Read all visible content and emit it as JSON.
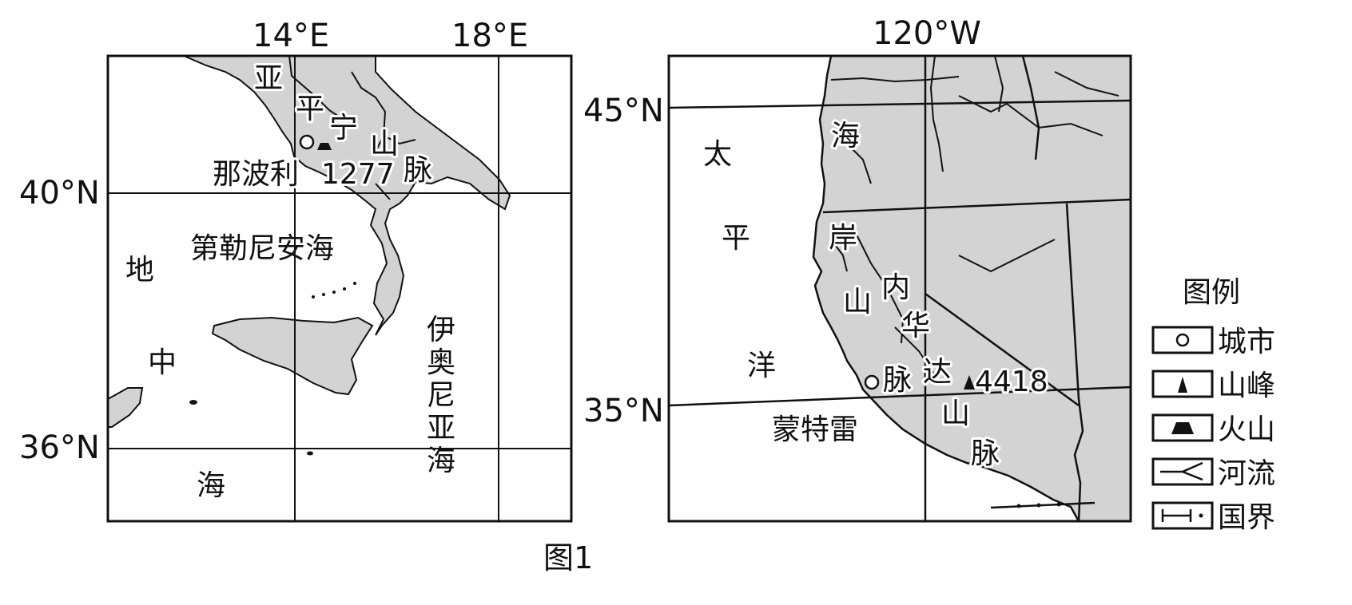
{
  "figure_caption": "图1",
  "map_left": {
    "lon_labels": [
      "14°E",
      "18°E"
    ],
    "lat_labels": [
      "40°N",
      "36°N"
    ],
    "places": {
      "sea_di": "地",
      "sea_zhong": "中",
      "sea_hai": "海",
      "tyrrhenian": "第勒尼安海",
      "ionian": [
        "伊",
        "奥",
        "尼",
        "亚",
        "海"
      ],
      "apennine": [
        "亚",
        "平",
        "宁",
        "山",
        "脉"
      ],
      "naples": "那波利",
      "volcano_height": "1277"
    }
  },
  "map_right": {
    "lon_labels": [
      "120°W"
    ],
    "lat_labels": [
      "45°N",
      "35°N"
    ],
    "places": {
      "pacific": [
        "太",
        "平",
        "洋"
      ],
      "coast_range": [
        "海",
        "岸",
        "山",
        "脉"
      ],
      "sierra_nevada": [
        "内",
        "华",
        "达",
        "山",
        "脉"
      ],
      "monterey": "蒙特雷",
      "peak_height": "4418"
    }
  },
  "legend": {
    "title": "图例",
    "items": [
      {
        "icon": "city-icon",
        "label": "城市"
      },
      {
        "icon": "peak-icon",
        "label": "山峰"
      },
      {
        "icon": "volcano-icon",
        "label": "火山"
      },
      {
        "icon": "river-icon",
        "label": "河流"
      },
      {
        "icon": "border-icon",
        "label": "国界"
      }
    ]
  },
  "colors": {
    "land": "#d3d3d3",
    "sea": "#ffffff",
    "line": "#111111"
  }
}
